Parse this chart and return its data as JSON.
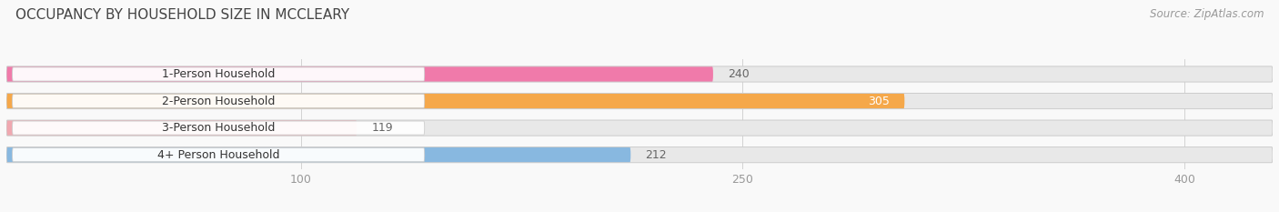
{
  "title": "OCCUPANCY BY HOUSEHOLD SIZE IN MCCLEARY",
  "source": "Source: ZipAtlas.com",
  "categories": [
    "1-Person Household",
    "2-Person Household",
    "3-Person Household",
    "4+ Person Household"
  ],
  "values": [
    240,
    305,
    119,
    212
  ],
  "bar_colors": [
    "#f07aaa",
    "#f5a84a",
    "#f0a8b0",
    "#88b8e0"
  ],
  "value_inside": [
    false,
    true,
    false,
    false
  ],
  "xlim": [
    0,
    430
  ],
  "xticks": [
    100,
    250,
    400
  ],
  "background_color": "#f9f9f9",
  "bar_bg_color": "#e8e8e8",
  "title_fontsize": 11,
  "source_fontsize": 8.5,
  "label_fontsize": 9,
  "value_fontsize": 9,
  "tick_fontsize": 9
}
